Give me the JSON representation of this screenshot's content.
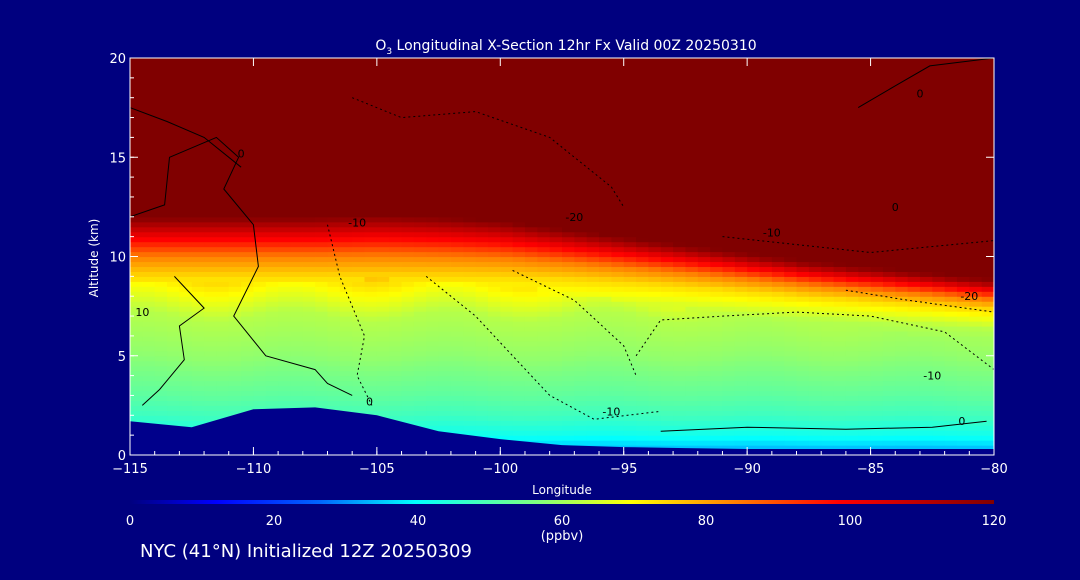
{
  "colors": {
    "background": "#00007f",
    "text": "#ffffff",
    "contour_line": "#000000",
    "terrain": "#00008b"
  },
  "chart_data": {
    "type": "heatmap",
    "title_main": "O",
    "title_sub": "3",
    "title_rest": " Longitudinal X-Section 12hr  Fx Valid 00Z 20250310",
    "xlabel": "Longitude",
    "ylabel": "Altitude (km)",
    "xlim": [
      -115,
      -80
    ],
    "ylim": [
      0,
      20
    ],
    "x_ticks": [
      -115,
      -110,
      -105,
      -100,
      -95,
      -90,
      -85,
      -80
    ],
    "x_tick_labels": [
      "−115",
      "−110",
      "−105",
      "−100",
      "−95",
      "−90",
      "−85",
      "−80"
    ],
    "y_ticks": [
      0,
      5,
      10,
      15,
      20
    ],
    "y_tick_labels": [
      "0",
      "5",
      "10",
      "15",
      "20"
    ],
    "field": {
      "description_units": "ppbv",
      "x": [
        -115,
        -112.5,
        -110,
        -107.5,
        -105,
        -102.5,
        -100,
        -97.5,
        -95,
        -92.5,
        -90,
        -87.5,
        -85,
        -82.5,
        -80
      ],
      "tropopause_km": [
        11.8,
        11.8,
        11.8,
        11.8,
        11.9,
        11.8,
        11.6,
        11.2,
        10.8,
        10.4,
        10.0,
        9.6,
        9.3,
        9.0,
        8.7
      ],
      "terrain_km": [
        1.7,
        1.4,
        2.3,
        2.4,
        2.0,
        1.2,
        0.8,
        0.5,
        0.4,
        0.35,
        0.3,
        0.3,
        0.3,
        0.3,
        0.3
      ],
      "profile_alt_km": [
        0,
        1,
        2,
        3,
        5,
        7,
        8,
        9,
        10,
        10.5,
        11,
        11.5,
        12,
        20
      ],
      "profile_ppbv": [
        30,
        42,
        48,
        52,
        58,
        62,
        68,
        74,
        84,
        92,
        100,
        110,
        120,
        120
      ]
    },
    "contour_labels": [
      {
        "text": "0",
        "lon": -110.5,
        "alt_km": 15
      },
      {
        "text": "10",
        "lon": -114.5,
        "alt_km": 7
      },
      {
        "text": "0",
        "lon": -105.3,
        "alt_km": 2.5
      },
      {
        "text": "-10",
        "lon": -105.8,
        "alt_km": 11.5
      },
      {
        "text": "-20",
        "lon": -97,
        "alt_km": 11.8
      },
      {
        "text": "-10",
        "lon": -89,
        "alt_km": 11
      },
      {
        "text": "0",
        "lon": -83,
        "alt_km": 18
      },
      {
        "text": "0",
        "lon": -84,
        "alt_km": 12.3
      },
      {
        "text": "-20",
        "lon": -81,
        "alt_km": 7.8
      },
      {
        "text": "-10",
        "lon": -82.5,
        "alt_km": 3.8
      },
      {
        "text": "-10",
        "lon": -95.5,
        "alt_km": 2.0
      },
      {
        "text": "0",
        "lon": -81.3,
        "alt_km": 1.5
      }
    ]
  },
  "colorbar": {
    "ticks": [
      0,
      20,
      40,
      60,
      80,
      100,
      120
    ],
    "tick_labels": [
      "0",
      "20",
      "40",
      "60",
      "80",
      "100",
      "120"
    ],
    "units_label": "(ppbv)",
    "range": [
      0,
      120
    ]
  },
  "footer": {
    "text": "NYC (41°N) Initialized 12Z 20250309"
  }
}
